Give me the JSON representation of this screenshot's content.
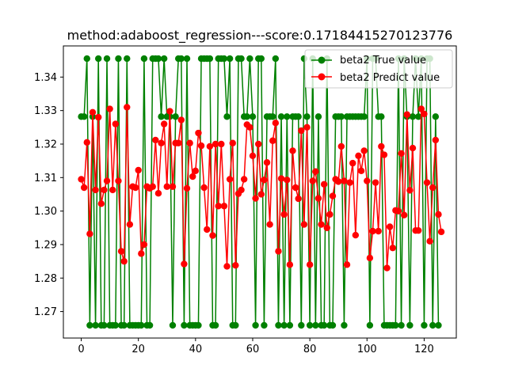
{
  "chart_data": {
    "type": "line",
    "title": "method:adaboost_regression---score:0.17184415270123776",
    "xlabel": "",
    "ylabel": "",
    "xlim": [
      -6.25,
      131.25
    ],
    "ylim": [
      1.2621,
      1.3493
    ],
    "xticks": [
      0,
      20,
      40,
      60,
      80,
      100,
      120
    ],
    "yticks": [
      1.27,
      1.28,
      1.29,
      1.3,
      1.31,
      1.32,
      1.33,
      1.34
    ],
    "ytick_labels": [
      "1.27",
      "1.28",
      "1.29",
      "1.30",
      "1.31",
      "1.32",
      "1.33",
      "1.34"
    ],
    "grid": false,
    "legend_position": "top-right",
    "colors": {
      "true": "#008000",
      "predict": "#ff0000"
    },
    "series": [
      {
        "name": "beta2 True value",
        "color": "#008000",
        "values": [
          1.3282,
          1.3282,
          1.3455,
          1.2659,
          1.3282,
          1.2659,
          1.3455,
          1.2659,
          1.2659,
          1.3455,
          1.2659,
          1.2659,
          1.2659,
          1.3455,
          1.2659,
          1.2659,
          1.3455,
          1.2659,
          1.2659,
          1.2659,
          1.2659,
          1.2659,
          1.3455,
          1.2659,
          1.2659,
          1.3455,
          1.3455,
          1.3455,
          1.3282,
          1.3455,
          1.3282,
          1.3282,
          1.2659,
          1.3282,
          1.3455,
          1.3455,
          1.2659,
          1.3455,
          1.2659,
          1.2659,
          1.2659,
          1.2659,
          1.3455,
          1.3455,
          1.3455,
          1.3455,
          1.2659,
          1.2659,
          1.3455,
          1.3455,
          1.3455,
          1.3282,
          1.3455,
          1.2659,
          1.2659,
          1.3455,
          1.3455,
          1.3282,
          1.3282,
          1.3455,
          1.3282,
          1.2659,
          1.3455,
          1.3455,
          1.2659,
          1.3282,
          1.3282,
          1.3282,
          1.3455,
          1.2659,
          1.3282,
          1.2659,
          1.3282,
          1.2659,
          1.3282,
          1.3282,
          1.3282,
          1.2659,
          1.3455,
          1.3282,
          1.2659,
          1.3455,
          1.2659,
          1.3282,
          1.2659,
          1.2659,
          1.3455,
          1.2659,
          1.2659,
          1.3282,
          1.3282,
          1.3282,
          1.2659,
          1.3282,
          1.3282,
          1.3282,
          1.3282,
          1.3282,
          1.3282,
          1.3282,
          1.3455,
          1.2659,
          1.3455,
          1.3455,
          1.3282,
          1.3282,
          1.2659,
          1.2659,
          1.2659,
          1.2659,
          1.2659,
          1.3455,
          1.2659,
          1.3455,
          1.3282,
          1.2659,
          1.3282,
          1.3455,
          1.3282,
          1.3455,
          1.2659,
          1.3455,
          1.3455,
          1.2659,
          1.3282,
          1.2659
        ]
      },
      {
        "name": "beta2 Predict value",
        "color": "#ff0000",
        "values": [
          1.3095,
          1.307,
          1.3205,
          1.2932,
          1.3295,
          1.3063,
          1.328,
          1.3022,
          1.3063,
          1.309,
          1.3305,
          1.3063,
          1.326,
          1.309,
          1.288,
          1.285,
          1.331,
          1.296,
          1.3073,
          1.307,
          1.3122,
          1.2873,
          1.29,
          1.3073,
          1.3068,
          1.3073,
          1.3212,
          1.3053,
          1.3203,
          1.326,
          1.3073,
          1.3298,
          1.3073,
          1.3203,
          1.3203,
          1.3272,
          1.2842,
          1.3068,
          1.3203,
          1.3103,
          1.312,
          1.3233,
          1.3195,
          1.307,
          1.2945,
          1.3193,
          1.2927,
          1.32,
          1.3015,
          1.32,
          1.3015,
          1.2835,
          1.3095,
          1.3203,
          1.2838,
          1.3052,
          1.3063,
          1.3095,
          1.3258,
          1.325,
          1.3165,
          1.3038,
          1.32,
          1.305,
          1.3093,
          1.3145,
          1.296,
          1.321,
          1.3263,
          1.288,
          1.3097,
          1.299,
          1.3093,
          1.284,
          1.318,
          1.307,
          1.3037,
          1.324,
          1.296,
          1.325,
          1.284,
          1.309,
          1.3118,
          1.3038,
          1.296,
          1.308,
          1.295,
          1.299,
          1.3045,
          1.3095,
          1.3088,
          1.3193,
          1.309,
          1.284,
          1.3085,
          1.3143,
          1.2928,
          1.3165,
          1.312,
          1.318,
          1.309,
          1.286,
          1.294,
          1.3085,
          1.294,
          1.3193,
          1.3168,
          1.283,
          1.2953,
          1.289,
          1.3002,
          1.3,
          1.3172,
          1.2988,
          1.3288,
          1.3062,
          1.3188,
          1.2942,
          1.2942,
          1.3305,
          1.329,
          1.3085,
          1.291,
          1.307,
          1.3212,
          1.299,
          1.2938
        ]
      }
    ]
  }
}
